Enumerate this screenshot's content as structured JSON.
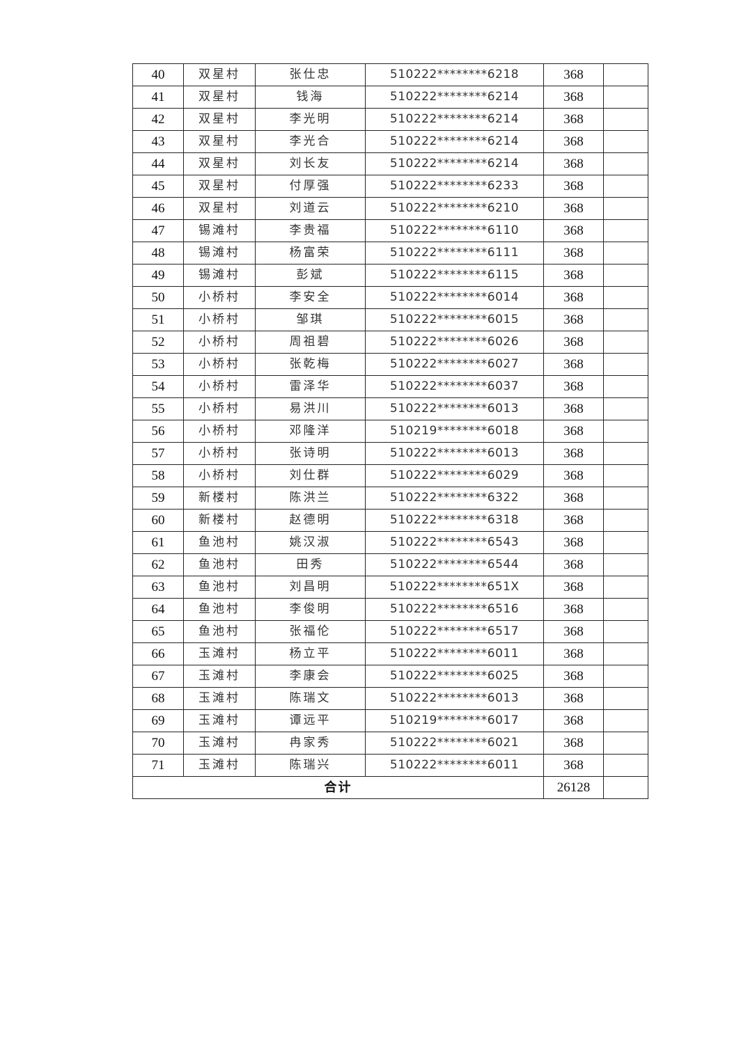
{
  "table": {
    "rows": [
      {
        "no": "40",
        "village": "双星村",
        "name": "张仕忠",
        "id": "510222********6218",
        "amount": "368",
        "remark": ""
      },
      {
        "no": "41",
        "village": "双星村",
        "name": "钱海",
        "id": "510222********6214",
        "amount": "368",
        "remark": ""
      },
      {
        "no": "42",
        "village": "双星村",
        "name": "李光明",
        "id": "510222********6214",
        "amount": "368",
        "remark": ""
      },
      {
        "no": "43",
        "village": "双星村",
        "name": "李光合",
        "id": "510222********6214",
        "amount": "368",
        "remark": ""
      },
      {
        "no": "44",
        "village": "双星村",
        "name": "刘长友",
        "id": "510222********6214",
        "amount": "368",
        "remark": ""
      },
      {
        "no": "45",
        "village": "双星村",
        "name": "付厚强",
        "id": "510222********6233",
        "amount": "368",
        "remark": ""
      },
      {
        "no": "46",
        "village": "双星村",
        "name": "刘道云",
        "id": "510222********6210",
        "amount": "368",
        "remark": ""
      },
      {
        "no": "47",
        "village": "锡滩村",
        "name": "李贵福",
        "id": "510222********6110",
        "amount": "368",
        "remark": ""
      },
      {
        "no": "48",
        "village": "锡滩村",
        "name": "杨富荣",
        "id": "510222********6111",
        "amount": "368",
        "remark": ""
      },
      {
        "no": "49",
        "village": "锡滩村",
        "name": "彭斌",
        "id": "510222********6115",
        "amount": "368",
        "remark": ""
      },
      {
        "no": "50",
        "village": "小桥村",
        "name": "李安全",
        "id": "510222********6014",
        "amount": "368",
        "remark": ""
      },
      {
        "no": "51",
        "village": "小桥村",
        "name": "邹琪",
        "id": "510222********6015",
        "amount": "368",
        "remark": ""
      },
      {
        "no": "52",
        "village": "小桥村",
        "name": "周祖碧",
        "id": "510222********6026",
        "amount": "368",
        "remark": ""
      },
      {
        "no": "53",
        "village": "小桥村",
        "name": "张乾梅",
        "id": "510222********6027",
        "amount": "368",
        "remark": ""
      },
      {
        "no": "54",
        "village": "小桥村",
        "name": "雷泽华",
        "id": "510222********6037",
        "amount": "368",
        "remark": ""
      },
      {
        "no": "55",
        "village": "小桥村",
        "name": "易洪川",
        "id": "510222********6013",
        "amount": "368",
        "remark": ""
      },
      {
        "no": "56",
        "village": "小桥村",
        "name": "邓隆洋",
        "id": "510219********6018",
        "amount": "368",
        "remark": ""
      },
      {
        "no": "57",
        "village": "小桥村",
        "name": "张诗明",
        "id": "510222********6013",
        "amount": "368",
        "remark": ""
      },
      {
        "no": "58",
        "village": "小桥村",
        "name": "刘仕群",
        "id": "510222********6029",
        "amount": "368",
        "remark": ""
      },
      {
        "no": "59",
        "village": "新楼村",
        "name": "陈洪兰",
        "id": "510222********6322",
        "amount": "368",
        "remark": ""
      },
      {
        "no": "60",
        "village": "新楼村",
        "name": "赵德明",
        "id": "510222********6318",
        "amount": "368",
        "remark": ""
      },
      {
        "no": "61",
        "village": "鱼池村",
        "name": "姚汉淑",
        "id": "510222********6543",
        "amount": "368",
        "remark": ""
      },
      {
        "no": "62",
        "village": "鱼池村",
        "name": "田秀",
        "id": "510222********6544",
        "amount": "368",
        "remark": ""
      },
      {
        "no": "63",
        "village": "鱼池村",
        "name": "刘昌明",
        "id": "510222********651X",
        "amount": "368",
        "remark": ""
      },
      {
        "no": "64",
        "village": "鱼池村",
        "name": "李俊明",
        "id": "510222********6516",
        "amount": "368",
        "remark": ""
      },
      {
        "no": "65",
        "village": "鱼池村",
        "name": "张福伦",
        "id": "510222********6517",
        "amount": "368",
        "remark": ""
      },
      {
        "no": "66",
        "village": "玉滩村",
        "name": "杨立平",
        "id": "510222********6011",
        "amount": "368",
        "remark": ""
      },
      {
        "no": "67",
        "village": "玉滩村",
        "name": "李康会",
        "id": "510222********6025",
        "amount": "368",
        "remark": ""
      },
      {
        "no": "68",
        "village": "玉滩村",
        "name": "陈瑞文",
        "id": "510222********6013",
        "amount": "368",
        "remark": ""
      },
      {
        "no": "69",
        "village": "玉滩村",
        "name": "谭远平",
        "id": "510219********6017",
        "amount": "368",
        "remark": ""
      },
      {
        "no": "70",
        "village": "玉滩村",
        "name": "冉家秀",
        "id": "510222********6021",
        "amount": "368",
        "remark": ""
      },
      {
        "no": "71",
        "village": "玉滩村",
        "name": "陈瑞兴",
        "id": "510222********6011",
        "amount": "368",
        "remark": ""
      }
    ],
    "total": {
      "label": "合计",
      "amount": "26128",
      "remark": ""
    }
  }
}
